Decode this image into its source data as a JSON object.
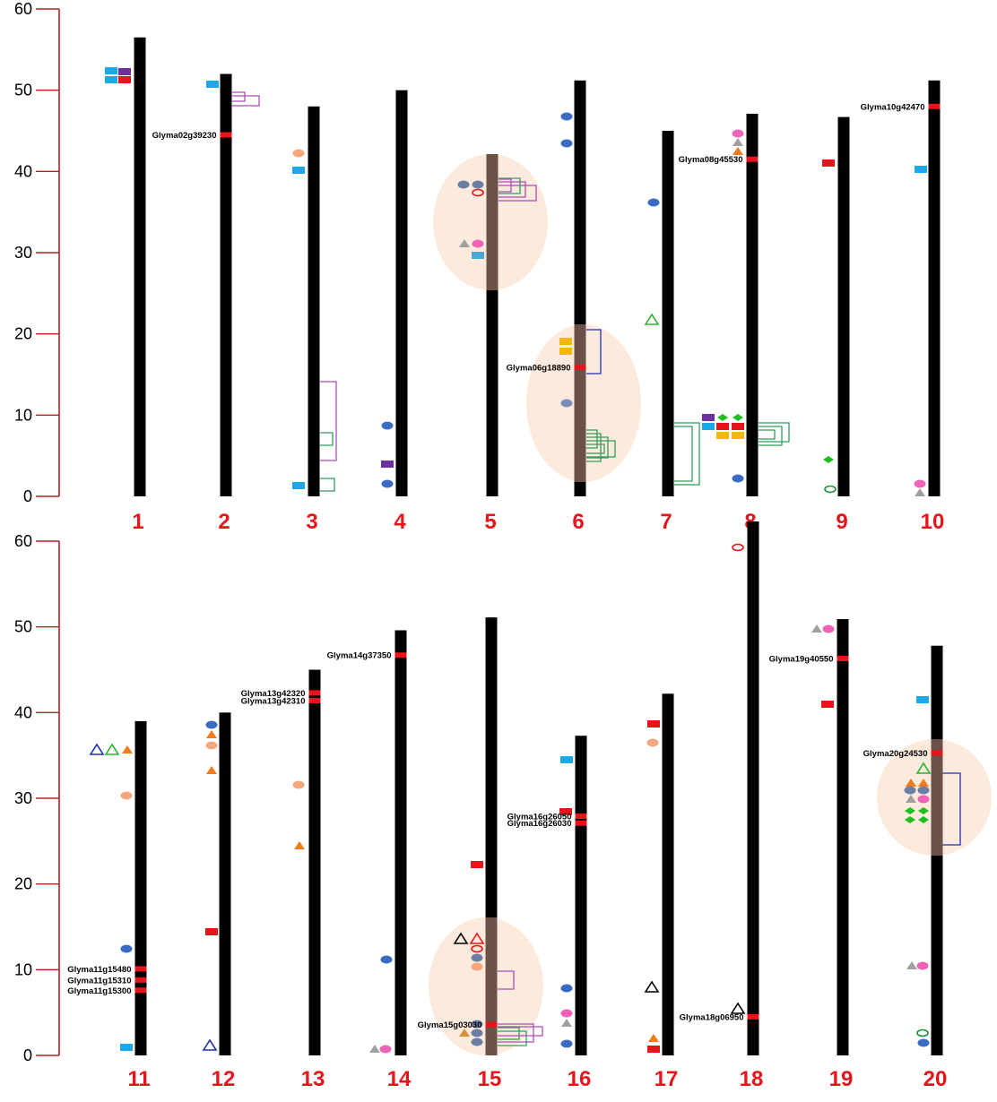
{
  "colors": {
    "chromosome": "#000000",
    "axis": "#b22222",
    "chrNumber": "#e8141b",
    "highlight": "#fbe6d6",
    "highlightBar": "#6b5147",
    "qtl": "#e8141b"
  },
  "axis": {
    "max": 60,
    "ticks": [
      0,
      10,
      20,
      30,
      40,
      50,
      60
    ]
  },
  "panels": [
    {
      "id": "top",
      "chromosomes": [
        {
          "number": "1",
          "length": 56.5,
          "genes": []
        },
        {
          "number": "2",
          "length": 52,
          "genes": [
            {
              "name": "Glyma02g39230",
              "pos": 44.5
            }
          ]
        },
        {
          "number": "3",
          "length": 48,
          "genes": []
        },
        {
          "number": "4",
          "length": 50,
          "genes": []
        },
        {
          "number": "5",
          "length": 42,
          "genes": []
        },
        {
          "number": "6",
          "length": 51.2,
          "genes": [
            {
              "name": "Glyma06g18890",
              "pos": 15.9
            }
          ]
        },
        {
          "number": "7",
          "length": 45,
          "genes": []
        },
        {
          "number": "8",
          "length": 47.1,
          "genes": [
            {
              "name": "Glyma08g45530",
              "pos": 41.5
            }
          ]
        },
        {
          "number": "9",
          "length": 46.7,
          "genes": []
        },
        {
          "number": "10",
          "length": 51.2,
          "genes": [
            {
              "name": "Glyma10g42470",
              "pos": 48
            }
          ]
        }
      ]
    },
    {
      "id": "bottom",
      "chromosomes": [
        {
          "number": "11",
          "length": 39,
          "genes": [
            {
              "name": "Glyma11g15480",
              "pos": 10.1
            },
            {
              "name": "Glyma11g15310",
              "pos": 8.8
            },
            {
              "name": "Glyma11g15300",
              "pos": 7.6
            }
          ]
        },
        {
          "number": "12",
          "length": 40,
          "genes": []
        },
        {
          "number": "13",
          "length": 45,
          "genes": [
            {
              "name": "Glyma13g42320",
              "pos": 42.3
            },
            {
              "name": "Glyma13g42310",
              "pos": 41.4
            }
          ]
        },
        {
          "number": "14",
          "length": 49.6,
          "genes": [
            {
              "name": "Glyma14g37350",
              "pos": 46.7
            }
          ]
        },
        {
          "number": "15",
          "length": 51.1,
          "genes": [
            {
              "name": "Glyma15g03030",
              "pos": 3.6
            }
          ]
        },
        {
          "number": "16",
          "length": 37.3,
          "genes": [
            {
              "name": "Glyma16g26050",
              "pos": 27.9
            },
            {
              "name": "Glyma16g26030",
              "pos": 27.1
            }
          ]
        },
        {
          "number": "17",
          "length": 42.2,
          "genes": []
        },
        {
          "number": "18",
          "length": 62.3,
          "genes": [
            {
              "name": "Glyma18g06950",
              "pos": 4.5
            }
          ]
        },
        {
          "number": "19",
          "length": 50.9,
          "genes": [
            {
              "name": "Glyma19g40550",
              "pos": 46.3
            }
          ]
        },
        {
          "number": "20",
          "length": 47.8,
          "genes": [
            {
              "name": "Glyma20g24530",
              "pos": 35.3
            }
          ]
        }
      ]
    }
  ]
}
